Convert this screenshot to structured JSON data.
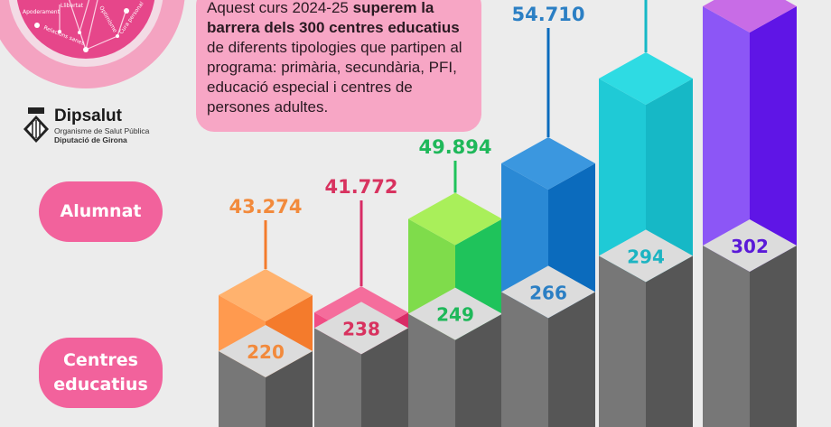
{
  "emblem": {
    "labels": [
      "Apoderament",
      "Llibertat",
      "Relacions sanes",
      "Optimisme",
      "Cura personal"
    ],
    "colors": {
      "ring": "#f4a3c1",
      "inner_ring": "#f3dbe5",
      "core": "#e6468a"
    }
  },
  "intro": {
    "prefix": "Aquest curs 2024-25 ",
    "bold": "superem la barrera dels 300 centres educatius",
    "suffix": " de diferents tipologies que partipen al programa: primària, secundària, PFI, educació especial i centres de persones adultes."
  },
  "logo": {
    "name": "Dipsalut",
    "subtitle": "Organisme de Salut Pública",
    "organization": "Diputació de Girona"
  },
  "row_labels": {
    "students": "Alumnat",
    "schools": "Centres educatius"
  },
  "chart_data": {
    "type": "bar",
    "style": "3d-isometric stacked columns",
    "series": [
      {
        "name": "Alumnat",
        "values": [
          43274,
          41772,
          49894,
          54710,
          null,
          null
        ],
        "labels": [
          "43.274",
          "41.772",
          "49.894",
          "54.710",
          "",
          ""
        ]
      },
      {
        "name": "Centres educatius",
        "values": [
          220,
          238,
          249,
          266,
          294,
          302
        ],
        "labels": [
          "220",
          "238",
          "249",
          "266",
          "294",
          "302"
        ]
      }
    ],
    "colors": [
      {
        "top": "#ffb26e",
        "left": "#ff9a4f",
        "right": "#f47b2c",
        "text": "#f28a3c"
      },
      {
        "top": "#f56d9c",
        "left": "#f04c84",
        "right": "#d82c66",
        "text": "#d8325f"
      },
      {
        "top": "#a9ef5a",
        "left": "#7fdc4b",
        "right": "#1fc35b",
        "text": "#1fb85a"
      },
      {
        "top": "#3b97df",
        "left": "#2a89d5",
        "right": "#0b6bbd",
        "text": "#2b7fc4"
      },
      {
        "top": "#2edbe3",
        "left": "#1fcad6",
        "right": "#16b8c6",
        "text": "#1cb4c2"
      },
      {
        "top": "#c86ce6",
        "left": "#8c56f6",
        "right": "#5f15e6",
        "text": "#5a1ad8"
      }
    ],
    "gray": {
      "top": "#dcdcdc",
      "left": "#777777",
      "right": "#565656"
    },
    "grid": false,
    "legend": "left"
  }
}
